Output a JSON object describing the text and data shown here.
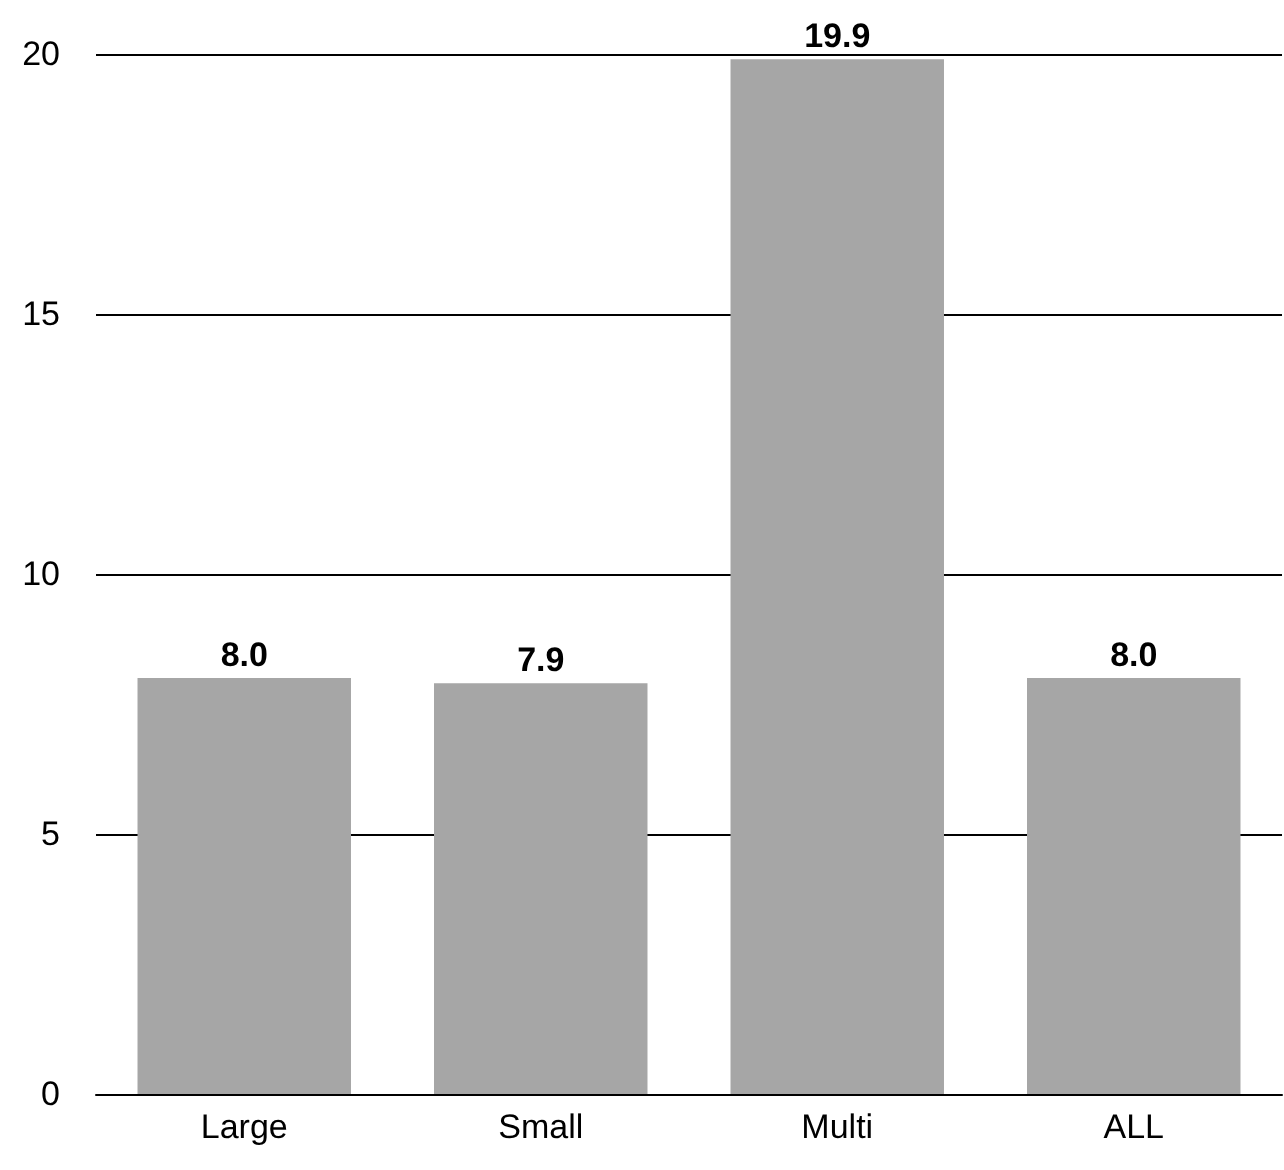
{
  "chart_data": {
    "type": "bar",
    "categories": [
      "Large",
      "Small",
      "Multi",
      "ALL"
    ],
    "values": [
      8.0,
      7.9,
      19.9,
      8.0
    ],
    "color": "#a6a6a6",
    "value_labels": [
      "8.0",
      "7.9",
      "19.9",
      "8.0"
    ],
    "ylim": [
      0,
      20
    ],
    "yticks": [
      0,
      5,
      10,
      15,
      20
    ],
    "grid": "y"
  }
}
